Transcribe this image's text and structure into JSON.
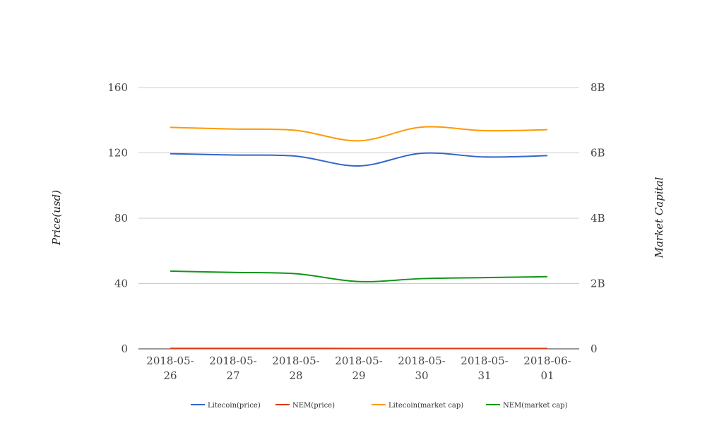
{
  "chart_data": {
    "type": "line",
    "categories": [
      "2018-05-26",
      "2018-05-27",
      "2018-05-28",
      "2018-05-29",
      "2018-05-30",
      "2018-05-31",
      "2018-06-01"
    ],
    "y_left": {
      "label": "Price(usd)",
      "range": [
        0,
        160
      ],
      "ticks": [
        0,
        40,
        80,
        120,
        160
      ],
      "tick_labels": [
        "0",
        "40",
        "80",
        "120",
        "160"
      ]
    },
    "y_right": {
      "label": "Market Capital",
      "range": [
        0,
        8000000000
      ],
      "ticks": [
        0,
        2000000000,
        4000000000,
        6000000000,
        8000000000
      ],
      "tick_labels": [
        "0",
        "2B",
        "4B",
        "6B",
        "8B"
      ]
    },
    "series": [
      {
        "name": "Litecoin(price)",
        "axis": "left",
        "color": "#3366cc",
        "values": [
          119.5,
          118.7,
          118.0,
          112.0,
          119.8,
          117.5,
          118.3
        ]
      },
      {
        "name": "NEM(price)",
        "axis": "left",
        "color": "#dc3912",
        "values": [
          0.27,
          0.26,
          0.26,
          0.23,
          0.24,
          0.24,
          0.24
        ]
      },
      {
        "name": "Litecoin(market cap)",
        "axis": "right",
        "color": "#ff9900",
        "values": [
          6780000000,
          6730000000,
          6690000000,
          6370000000,
          6790000000,
          6680000000,
          6710000000
        ]
      },
      {
        "name": "NEM(market cap)",
        "axis": "right",
        "color": "#109618",
        "values": [
          2380000000,
          2340000000,
          2300000000,
          2060000000,
          2150000000,
          2180000000,
          2210000000
        ]
      }
    ],
    "grid": true,
    "legend_position": "bottom"
  }
}
